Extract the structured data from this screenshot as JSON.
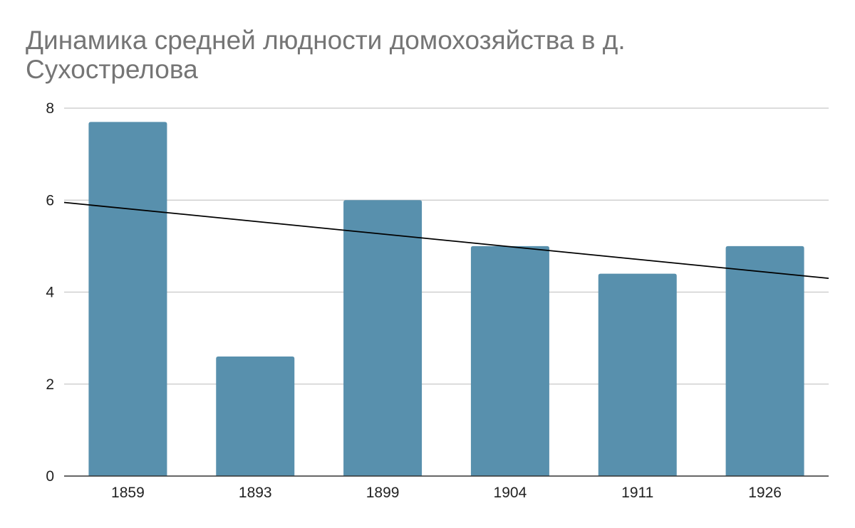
{
  "chart_data": {
    "type": "bar",
    "title": "Динамика средней людности домохозяйства в д. Сухострелова",
    "xlabel": "",
    "ylabel": "",
    "categories": [
      "1859",
      "1893",
      "1899",
      "1904",
      "1911",
      "1926"
    ],
    "series": [
      {
        "values": [
          7.7,
          2.6,
          6.0,
          5.0,
          4.4,
          5.0
        ],
        "color": "#5890ad"
      }
    ],
    "trendline": {
      "type": "linear",
      "start_value": 5.95,
      "end_value": 4.3,
      "color": "#000000"
    },
    "ylim": [
      0,
      8
    ],
    "yticks": [
      0,
      2,
      4,
      6,
      8
    ],
    "grid": true,
    "legend": "none"
  }
}
